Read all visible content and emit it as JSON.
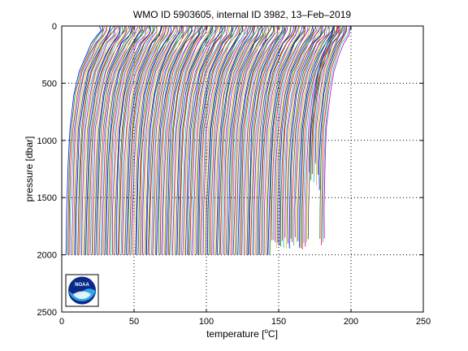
{
  "chart_data": {
    "type": "line",
    "title": "WMO ID 5903605, internal ID 3982, 13–Feb–2019",
    "xlabel": "temperature [",
    "xlabel_unit": "C]",
    "xlabel_superscript": "o",
    "ylabel": "pressure [dbar]",
    "xlim": [
      0,
      250
    ],
    "ylim": [
      0,
      2500
    ],
    "y_reversed": true,
    "x_ticks": [
      0,
      50,
      100,
      150,
      200,
      250
    ],
    "y_ticks": [
      0,
      500,
      1000,
      1500,
      2000,
      2500
    ],
    "x_tick_labels": [
      "0",
      "50",
      "100",
      "150",
      "200",
      "250"
    ],
    "y_tick_labels": [
      "0",
      "500",
      "1000",
      "1500",
      "2000",
      "2500"
    ],
    "grid": "dotted",
    "profile_count": 180,
    "profile_offset_step": 1.0,
    "profile_shape": {
      "pressure": [
        0,
        40,
        80,
        150,
        250,
        400,
        600,
        900,
        1200,
        1600,
        2000
      ],
      "temperature": [
        27.0,
        26.5,
        25.0,
        21.0,
        17.0,
        12.0,
        8.5,
        5.5,
        4.3,
        3.4,
        2.8
      ]
    },
    "series_colors": [
      "#0000ff",
      "#008000",
      "#ff0000",
      "#00bfbf",
      "#bf00bf",
      "#bfbf00",
      "#404040"
    ],
    "logo_text": "NOAA"
  }
}
